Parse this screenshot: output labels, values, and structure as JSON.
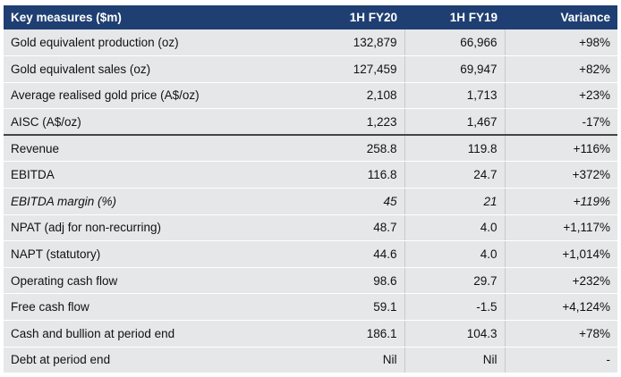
{
  "header": {
    "label": "Key measures ($m)",
    "col1": "1H FY20",
    "col2": "1H FY19",
    "col3": "Variance"
  },
  "rows": [
    {
      "label": "Gold equivalent production (oz)",
      "fy20": "132,879",
      "fy19": "66,966",
      "variance": "+98%"
    },
    {
      "label": "Gold equivalent sales (oz)",
      "fy20": "127,459",
      "fy19": "69,947",
      "variance": "+82%"
    },
    {
      "label": "Average realised gold price (A$/oz)",
      "fy20": "2,108",
      "fy19": "1,713",
      "variance": "+23%"
    },
    {
      "label": "AISC (A$/oz)",
      "fy20": "1,223",
      "fy19": "1,467",
      "variance": "-17%"
    },
    {
      "label": "Revenue",
      "fy20": "258.8",
      "fy19": "119.8",
      "variance": "+116%"
    },
    {
      "label": "EBITDA",
      "fy20": "116.8",
      "fy19": "24.7",
      "variance": "+372%"
    },
    {
      "label": "EBITDA margin (%)",
      "fy20": "45",
      "fy19": "21",
      "variance": "+119%"
    },
    {
      "label": "NPAT (adj for non-recurring)",
      "fy20": "48.7",
      "fy19": "4.0",
      "variance": "+1,117%"
    },
    {
      "label": "NAPT (statutory)",
      "fy20": "44.6",
      "fy19": "4.0",
      "variance": "+1,014%"
    },
    {
      "label": "Operating cash flow",
      "fy20": "98.6",
      "fy19": "29.7",
      "variance": "+232%"
    },
    {
      "label": "Free cash flow",
      "fy20": "59.1",
      "fy19": "-1.5",
      "variance": "+4,124%"
    },
    {
      "label": "Cash and bullion at period end",
      "fy20": "186.1",
      "fy19": "104.3",
      "variance": "+78%"
    },
    {
      "label": "Debt at period end",
      "fy20": "Nil",
      "fy19": "Nil",
      "variance": "-"
    }
  ],
  "colors": {
    "header_bg": "#1f3f73",
    "header_text": "#ffffff",
    "shaded_row": "#e6e7e9"
  }
}
